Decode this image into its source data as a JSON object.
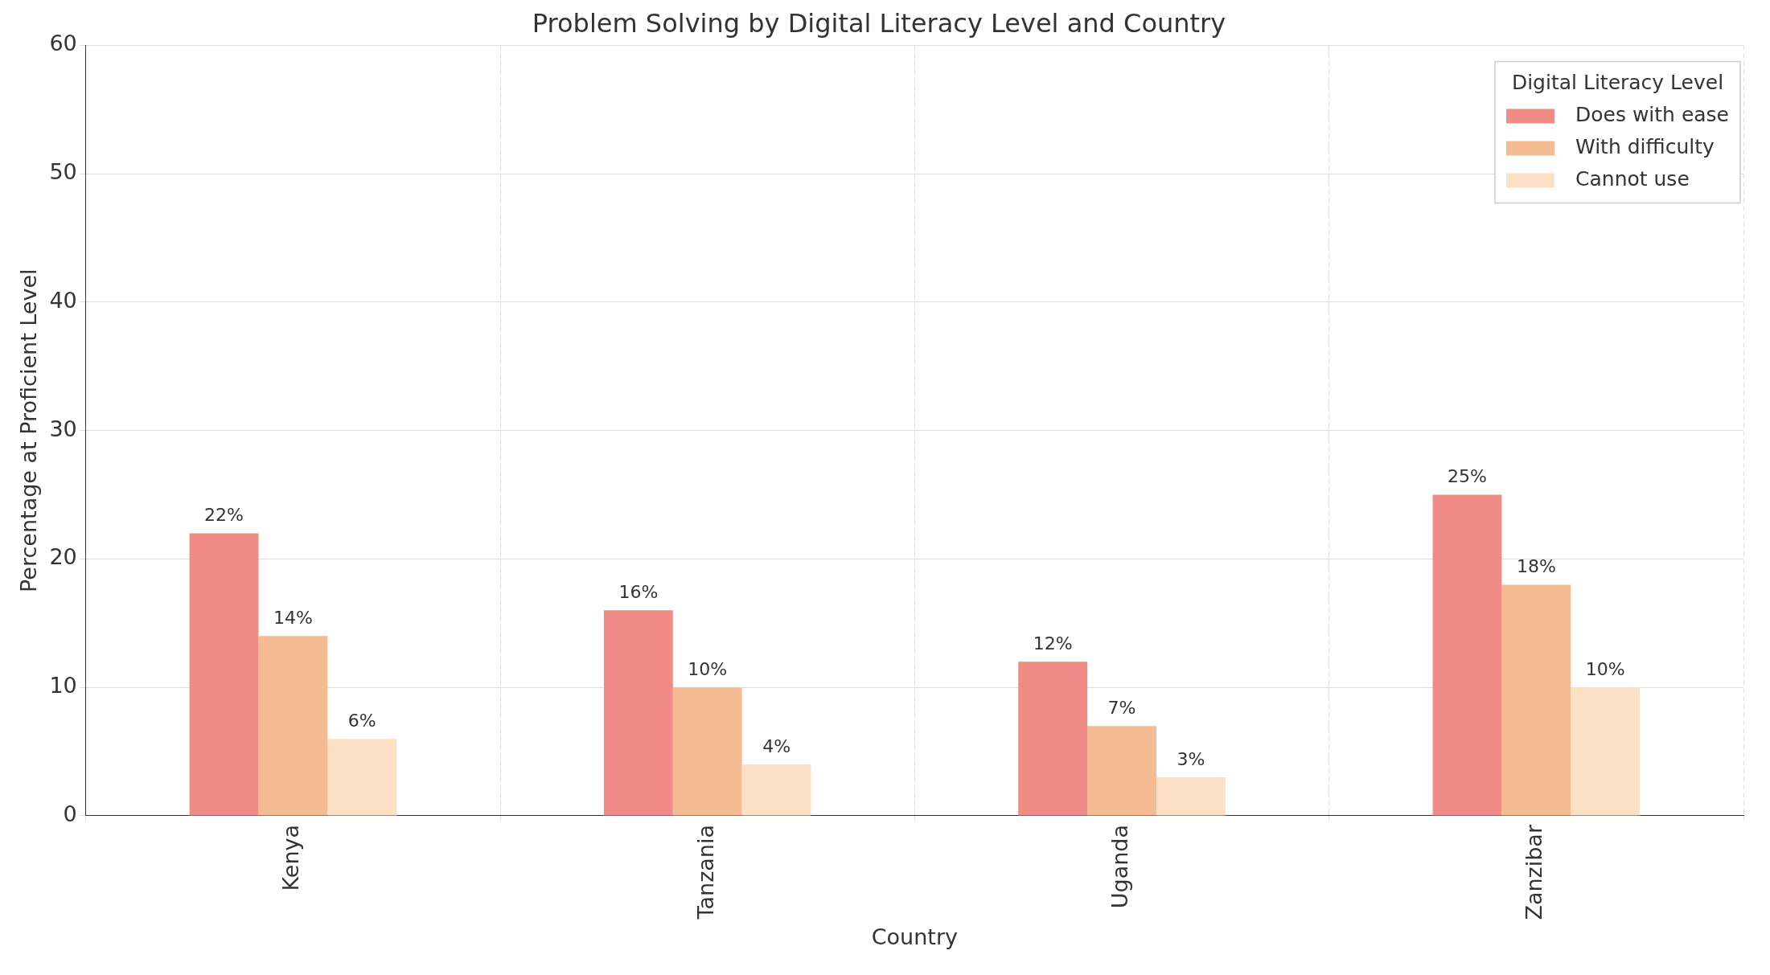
{
  "chart_data": {
    "type": "bar",
    "title": "Problem Solving by Digital Literacy Level and Country",
    "xlabel": "Country",
    "ylabel": "Percentage at Proficient Level",
    "legend_title": "Digital Literacy Level",
    "categories": [
      "Kenya",
      "Tanzania",
      "Uganda",
      "Zanzibar"
    ],
    "series": [
      {
        "name": "Does with ease",
        "color": "#f08c86",
        "values": [
          22,
          16,
          12,
          25
        ],
        "value_labels": [
          "22%",
          "16%",
          "12%",
          "25%"
        ]
      },
      {
        "name": "With difficulty",
        "color": "#f5bc94",
        "values": [
          14,
          10,
          7,
          18
        ],
        "value_labels": [
          "14%",
          "10%",
          "7%",
          "18%"
        ]
      },
      {
        "name": "Cannot use",
        "color": "#fbe0c6",
        "values": [
          6,
          4,
          3,
          10
        ],
        "value_labels": [
          "6%",
          "4%",
          "3%",
          "10%"
        ]
      }
    ],
    "ylim": [
      0,
      60
    ],
    "yticks": [
      0,
      10,
      20,
      30,
      40,
      50,
      60
    ],
    "grid": true,
    "legend": "top right"
  }
}
